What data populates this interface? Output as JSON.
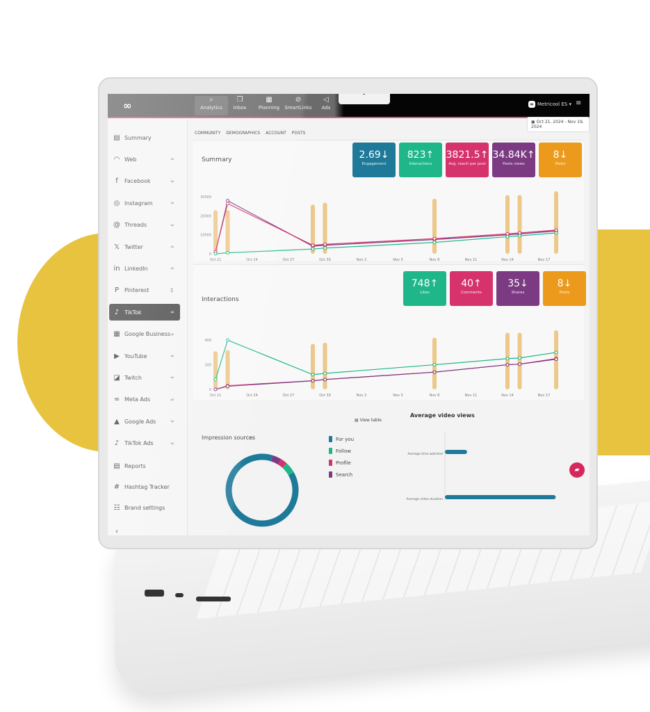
{
  "header": {
    "nav": [
      {
        "label": "Analytics",
        "icon": "analytics-icon"
      },
      {
        "label": "Inbox",
        "icon": "inbox-icon"
      },
      {
        "label": "Planning",
        "icon": "calendar-icon"
      },
      {
        "label": "SmartLinks",
        "icon": "link-icon"
      },
      {
        "label": "Ads",
        "icon": "megaphone-icon"
      }
    ],
    "account": "Metricool ES",
    "date_range": "Oct 21, 2024 - Nov 19, 2024"
  },
  "sidebar": {
    "items": [
      {
        "label": "Summary",
        "icon": "▤",
        "badge": ""
      },
      {
        "label": "Web",
        "icon": "◠",
        "badge": "∞"
      },
      {
        "label": "Facebook",
        "icon": "f",
        "badge": "∞"
      },
      {
        "label": "Instagram",
        "icon": "◎",
        "badge": "∞"
      },
      {
        "label": "Threads",
        "icon": "@",
        "badge": "∞"
      },
      {
        "label": "Twitter",
        "icon": "𝕏",
        "badge": "∞"
      },
      {
        "label": "LinkedIn",
        "icon": "in",
        "badge": "∞"
      },
      {
        "label": "Pinterest",
        "icon": "P",
        "badge": "Σ"
      },
      {
        "label": "TikTok",
        "icon": "♪",
        "badge": "∞"
      },
      {
        "label": "Google Business ...",
        "icon": "▦",
        "badge": "∞"
      },
      {
        "label": "YouTube",
        "icon": "▶",
        "badge": "∞"
      },
      {
        "label": "Twitch",
        "icon": "◪",
        "badge": "∞"
      },
      {
        "label": "Meta Ads",
        "icon": "∞",
        "badge": "∞"
      },
      {
        "label": "Google Ads",
        "icon": "▲",
        "badge": "∞"
      },
      {
        "label": "TikTok Ads",
        "icon": "♪",
        "badge": "∞"
      }
    ],
    "bottom": [
      {
        "label": "Reports",
        "icon": "▤"
      },
      {
        "label": "Hashtag Tracker",
        "icon": "#"
      },
      {
        "label": "Brand settings",
        "icon": "☷"
      }
    ],
    "collapse": "‹"
  },
  "tabs": [
    "COMMUNITY",
    "DEMOGRAPHICS",
    "ACCOUNT",
    "POSTS"
  ],
  "summary": {
    "title": "Summary",
    "kpis": [
      {
        "value": "2.69↓",
        "label": "Engagement",
        "color": "#1f7a99"
      },
      {
        "value": "823↑",
        "label": "Interactions",
        "color": "#1fb78a"
      },
      {
        "value": "3821.5↑",
        "label": "Avg. reach per post",
        "color": "#d6336c"
      },
      {
        "value": "34.84K↑",
        "label": "Posts views",
        "color": "#7b3a82"
      },
      {
        "value": "8↓",
        "label": "Posts",
        "color": "#ec9a1c"
      }
    ]
  },
  "interactions": {
    "title": "Interactions",
    "kpis": [
      {
        "value": "748↑",
        "label": "Likes",
        "color": "#1fb78a"
      },
      {
        "value": "40↑",
        "label": "Comments",
        "color": "#d6336c"
      },
      {
        "value": "35↓",
        "label": "Shares",
        "color": "#7b3a82"
      },
      {
        "value": "8↓",
        "label": "Posts",
        "color": "#ec9a1c"
      }
    ]
  },
  "impressions": {
    "title": "Impression sources",
    "view_table": "View table",
    "legend": [
      {
        "label": "For you",
        "color": "#1f7a99"
      },
      {
        "label": "Follow",
        "color": "#1fb78a"
      },
      {
        "label": "Profile",
        "color": "#d6336c"
      },
      {
        "label": "Search",
        "color": "#7b3a82"
      }
    ]
  },
  "video": {
    "title": "Average video views"
  },
  "chart_data": [
    {
      "type": "line",
      "title": "Summary",
      "x_ticks": [
        "Oct 21",
        "Oct 24",
        "Oct 27",
        "Oct 30",
        "Nov 2",
        "Nov 5",
        "Nov 8",
        "Nov 11",
        "Nov 14",
        "Nov 17"
      ],
      "y_ticks": [
        0,
        10000,
        20000,
        30000
      ],
      "ylim": [
        0,
        33000
      ],
      "x": [
        "Oct 21",
        "Oct 22",
        "Oct 29",
        "Oct 30",
        "Nov 8",
        "Nov 14",
        "Nov 15",
        "Nov 18"
      ],
      "bars": {
        "color": "#ebbf78",
        "values": [
          23000,
          23000,
          26000,
          27000,
          29000,
          31000,
          31000,
          33000
        ]
      },
      "series": [
        {
          "color": "#7b3a82",
          "values": [
            1000,
            28000,
            4000,
            4500,
            7500,
            10000,
            10500,
            12000
          ]
        },
        {
          "color": "#d6336c",
          "values": [
            1000,
            26500,
            4500,
            5000,
            8000,
            10500,
            11000,
            12500
          ]
        },
        {
          "color": "#1fb78a",
          "values": [
            0,
            500,
            2500,
            3000,
            6000,
            9000,
            9500,
            11000
          ]
        }
      ]
    },
    {
      "type": "line",
      "title": "Interactions",
      "x_ticks": [
        "Oct 21",
        "Oct 24",
        "Oct 27",
        "Oct 30",
        "Nov 2",
        "Nov 5",
        "Nov 8",
        "Nov 11",
        "Nov 14",
        "Nov 17"
      ],
      "y_ticks": [
        0,
        200,
        400
      ],
      "ylim": [
        0,
        480
      ],
      "x": [
        "Oct 21",
        "Oct 22",
        "Oct 29",
        "Oct 30",
        "Nov 8",
        "Nov 14",
        "Nov 15",
        "Nov 18"
      ],
      "bars": {
        "color": "#ebbf78",
        "values": [
          310,
          320,
          370,
          380,
          420,
          460,
          460,
          480
        ]
      },
      "series": [
        {
          "color": "#1fb78a",
          "values": [
            80,
            400,
            120,
            130,
            200,
            250,
            255,
            300
          ]
        },
        {
          "color": "#d6336c",
          "values": [
            0,
            30,
            70,
            80,
            140,
            200,
            205,
            250
          ]
        },
        {
          "color": "#7b3a82",
          "values": [
            0,
            25,
            70,
            80,
            140,
            200,
            205,
            245
          ]
        }
      ]
    },
    {
      "type": "pie",
      "title": "Impression sources",
      "categories": [
        "For you",
        "Follow",
        "Profile",
        "Search"
      ],
      "values": [
        88,
        5,
        3,
        4
      ]
    },
    {
      "type": "bar",
      "title": "Average video views",
      "categories": [
        "Average time watched",
        "Average video duration"
      ],
      "values": [
        6,
        30
      ]
    }
  ]
}
